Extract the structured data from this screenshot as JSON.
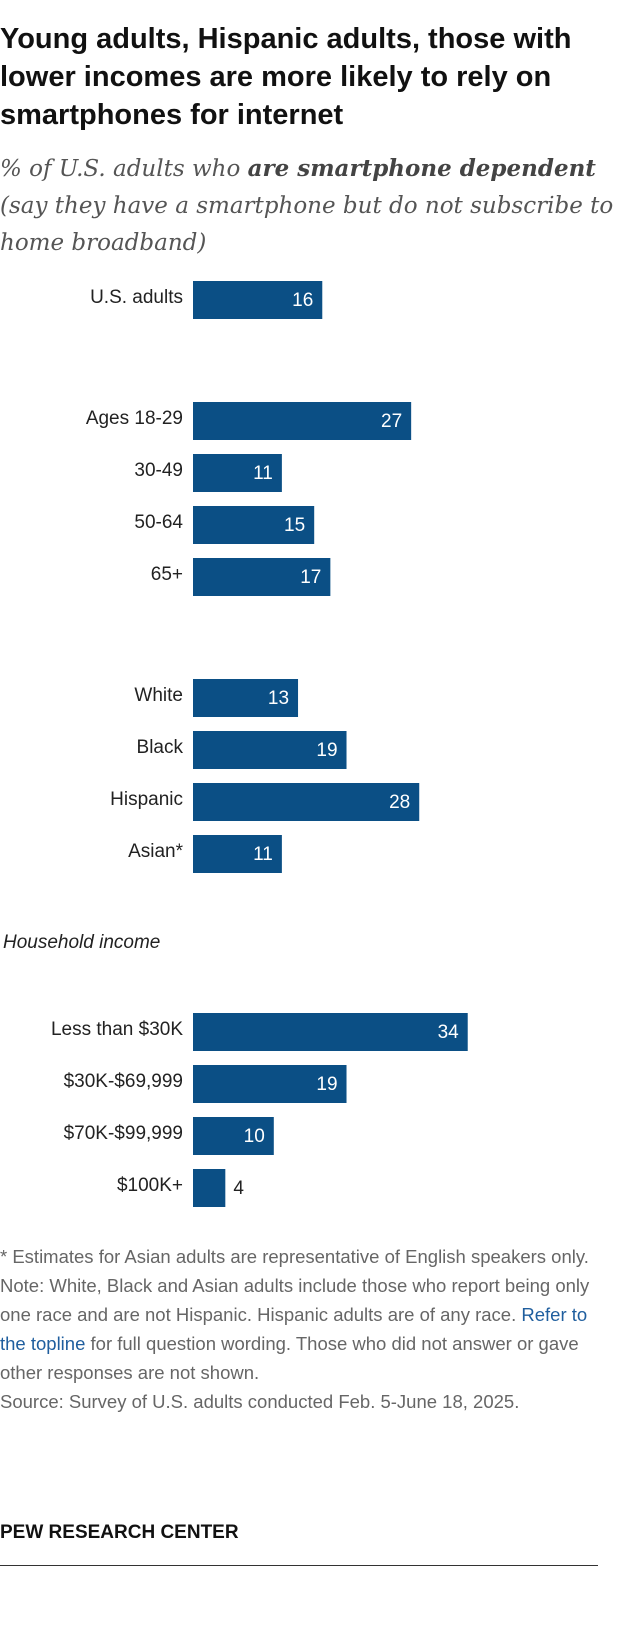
{
  "chart_data": {
    "type": "bar",
    "title": "Young adults, Hispanic adults, those with lower incomes are more likely to rely on smartphones for internet",
    "subtitle": [
      "% of U.S. adults who ",
      "are smartphone dependent",
      " (say they have a smartphone but do not subscribe to home broadband)"
    ],
    "color": "#0b4f85",
    "groups": [
      {
        "categories": [
          "U.S. adults"
        ],
        "values": [
          16
        ]
      },
      {
        "categories": [
          "Ages 18-29",
          "30-49",
          "50-64",
          "65+"
        ],
        "values": [
          27,
          11,
          15,
          17
        ]
      },
      {
        "categories": [
          "White",
          "Black",
          "Hispanic",
          "Asian*"
        ],
        "values": [
          13,
          19,
          28,
          11
        ]
      },
      {
        "label": "Household income",
        "categories": [
          "Less than $30K",
          "$30K-$69,999",
          "$70K-$99,999",
          "$100K+"
        ],
        "values": [
          34,
          19,
          10,
          4
        ]
      }
    ],
    "notes": [
      [
        "* Estimates for Asian adults are representative of English speakers only."
      ],
      [
        "Note: White, Black and Asian adults include those who report being only one race and are not Hispanic. Hispanic adults are of any race. ",
        "Refer to the topline",
        " for full question wording. Those who did not answer or gave other responses are not shown."
      ],
      [
        "Source: Survey of U.S. adults conducted Feb. 5-June 18, 2025."
      ]
    ],
    "source_org": "PEW RESEARCH CENTER"
  }
}
